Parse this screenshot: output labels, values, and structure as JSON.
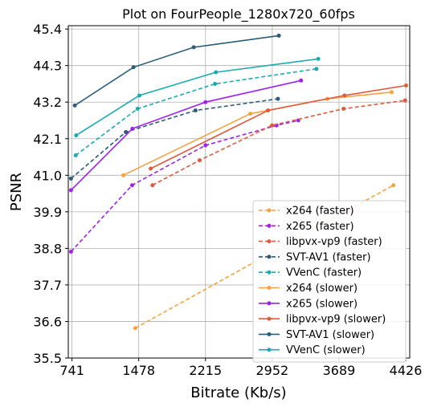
{
  "chart_data": {
    "type": "line",
    "title": "Plot on FourPeople_1280x720_60fps",
    "xlabel": "Bitrate (Kb/s)",
    "ylabel": "PSNR",
    "xlim": [
      700,
      4470
    ],
    "ylim": [
      35.5,
      45.5
    ],
    "xticks": [
      741,
      1478,
      2215,
      2952,
      3689,
      4426
    ],
    "xtick_labels": [
      "741",
      "1478",
      "2215",
      "2952",
      "3689",
      "4426"
    ],
    "yticks": [
      35.5,
      36.6,
      37.7,
      38.8,
      39.9,
      41.0,
      42.1,
      43.2,
      44.3,
      45.4
    ],
    "ytick_labels": [
      "35.5",
      "36.6",
      "37.7",
      "38.8",
      "39.9",
      "41.0",
      "42.1",
      "43.2",
      "44.3",
      "45.4"
    ],
    "grid": true,
    "legend_position": "lower-right",
    "series": [
      {
        "name": "x264 (faster)",
        "color": "#f4a340",
        "dashed": true,
        "x": [
          1440,
          4290
        ],
        "y": [
          36.4,
          40.7
        ]
      },
      {
        "name": "x265 (faster)",
        "color": "#a020f0",
        "dashed": true,
        "x": [
          730,
          1405,
          2215,
          3000,
          3240
        ],
        "y": [
          38.7,
          40.7,
          41.9,
          42.5,
          42.65
        ]
      },
      {
        "name": "libpvx-vp9 (faster)",
        "color": "#e05a3c",
        "dashed": true,
        "x": [
          1630,
          2150,
          2950,
          3740,
          4420
        ],
        "y": [
          40.7,
          41.45,
          42.5,
          43.0,
          43.25
        ]
      },
      {
        "name": "SVT-AV1 (faster)",
        "color": "#2b5c7a",
        "dashed": true,
        "x": [
          730,
          1335,
          2105,
          3015
        ],
        "y": [
          40.9,
          42.3,
          42.95,
          43.3
        ]
      },
      {
        "name": "VVenC (faster)",
        "color": "#1aabb0",
        "dashed": true,
        "x": [
          782,
          1465,
          2320,
          3440
        ],
        "y": [
          41.6,
          43.0,
          43.75,
          44.2
        ]
      },
      {
        "name": "x264 (slower)",
        "color": "#f4a340",
        "dashed": false,
        "x": [
          1308,
          2710,
          3560,
          4270
        ],
        "y": [
          41.0,
          42.85,
          43.3,
          43.5
        ]
      },
      {
        "name": "x265 (slower)",
        "color": "#a020f0",
        "dashed": false,
        "x": [
          730,
          1408,
          2215,
          3270
        ],
        "y": [
          40.55,
          42.4,
          43.2,
          43.85
        ]
      },
      {
        "name": "libpvx-vp9 (slower)",
        "color": "#e05a3c",
        "dashed": false,
        "x": [
          1610,
          2905,
          3750,
          4430
        ],
        "y": [
          41.2,
          42.95,
          43.4,
          43.7
        ]
      },
      {
        "name": "SVT-AV1 (slower)",
        "color": "#2b5c7a",
        "dashed": false,
        "x": [
          772,
          1420,
          2085,
          3025
        ],
        "y": [
          43.1,
          44.25,
          44.85,
          45.2
        ]
      },
      {
        "name": "VVenC (slower)",
        "color": "#1aabb0",
        "dashed": false,
        "x": [
          787,
          1485,
          2330,
          3460
        ],
        "y": [
          42.2,
          43.4,
          44.1,
          44.5
        ]
      }
    ]
  }
}
